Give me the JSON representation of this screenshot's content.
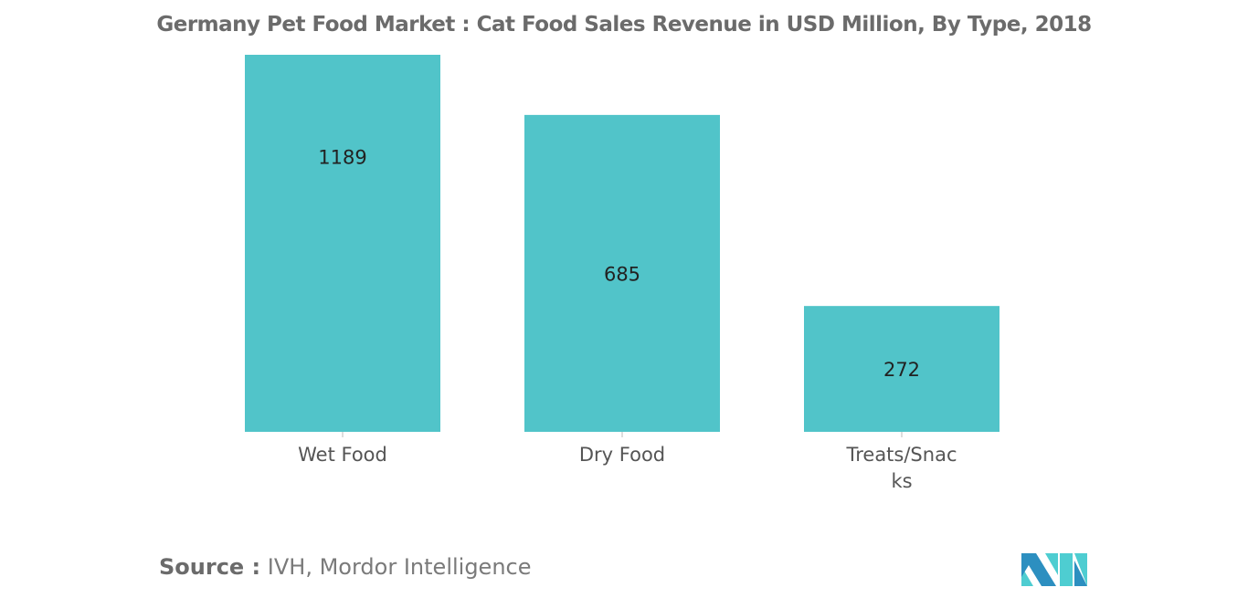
{
  "title": "Germany Pet Food Market : Cat Food Sales Revenue in USD Million, By Type, 2018",
  "source": {
    "label": "Source :",
    "text": "IVH, Mordor Intelligence"
  },
  "colors": {
    "bar": "#51c4c9",
    "logo_dark": "#2c8fc0",
    "logo_light": "#4ecdd1"
  },
  "chart_data": {
    "type": "bar",
    "title": "Germany Pet Food Market : Cat Food Sales Revenue in USD Million, By Type, 2018",
    "categories": [
      "Wet Food",
      "Dry Food",
      "Treats/Snacks"
    ],
    "category_label_lines": [
      [
        "Wet Food"
      ],
      [
        "Dry Food"
      ],
      [
        "Treats/Snac",
        "ks"
      ]
    ],
    "values": [
      1189,
      685,
      272
    ],
    "data_labels": [
      "1189",
      "685",
      "272"
    ],
    "ylim": [
      0,
      815
    ],
    "grid": false,
    "xlabel": "",
    "ylabel": ""
  }
}
